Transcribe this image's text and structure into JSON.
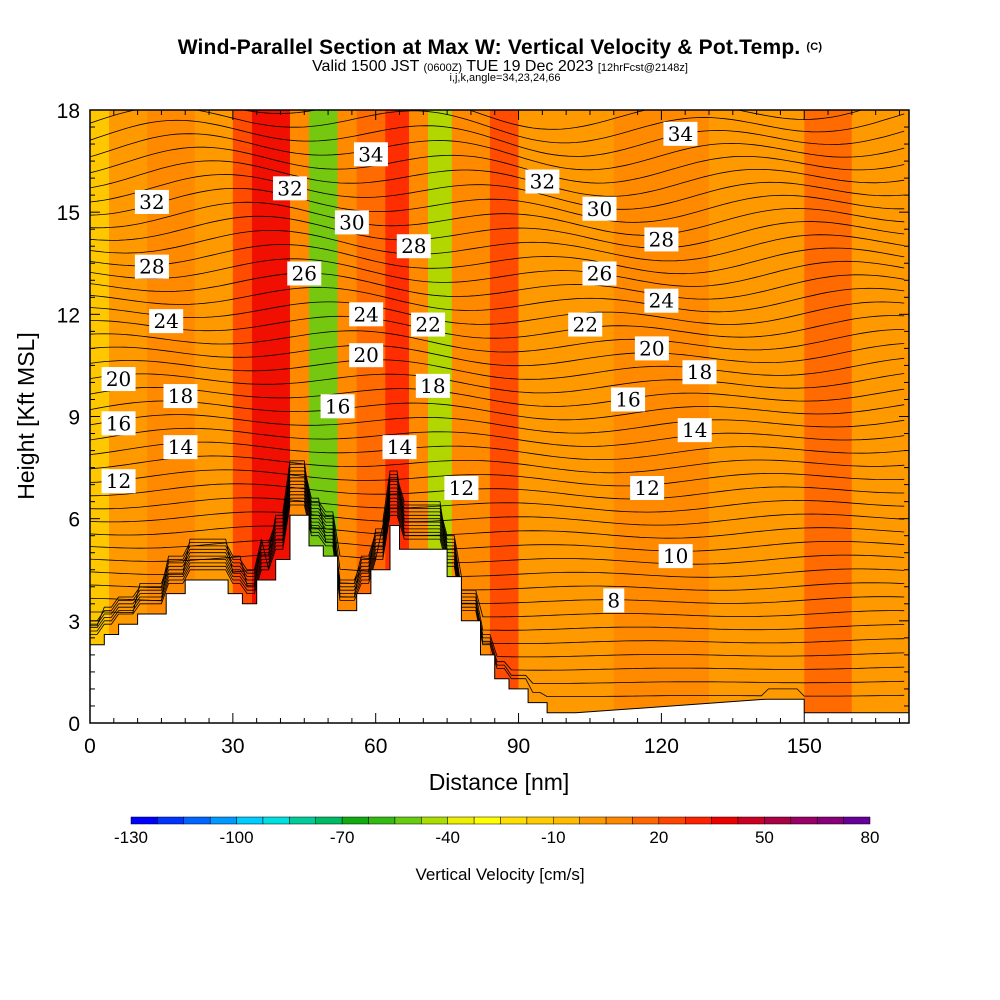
{
  "header": {
    "title": "Wind-Parallel Section at Max W: Vertical Velocity & Pot.Temp.",
    "copyright": "(C)",
    "valid_prefix": "Valid 1500 JST",
    "valid_utc": "(0600Z)",
    "valid_date": "TUE 19 Dec 2023",
    "forecast_info": "[12hrFcst@2148z]",
    "params": "i,j,k,angle=34,23,24,66"
  },
  "chart_data": {
    "type": "heatmap",
    "xlabel": "Distance [nm]",
    "ylabel": "Height [Kft MSL]",
    "xlim": [
      0,
      172
    ],
    "ylim": [
      0,
      18
    ],
    "x_ticks": [
      0,
      30,
      60,
      90,
      120,
      150
    ],
    "y_ticks": [
      0,
      3,
      6,
      9,
      12,
      15,
      18
    ],
    "terrain": {
      "x": [
        0,
        3,
        3,
        6,
        6,
        10,
        10,
        16,
        16,
        20,
        20,
        29,
        29,
        32,
        32,
        35,
        35,
        39,
        39,
        42,
        42,
        46,
        46,
        49,
        49,
        52,
        52,
        56,
        56,
        59,
        59,
        63,
        63,
        65,
        65,
        75,
        75,
        78,
        78,
        82,
        82,
        85,
        85,
        88,
        88,
        92,
        92,
        96,
        96,
        99,
        99,
        102,
        102,
        142,
        142,
        150,
        150,
        155,
        155,
        172
      ],
      "y": [
        2.3,
        2.3,
        2.6,
        2.6,
        2.9,
        2.9,
        3.2,
        3.2,
        3.8,
        3.8,
        4.2,
        4.2,
        3.8,
        3.8,
        3.5,
        3.5,
        4.2,
        4.2,
        4.8,
        4.8,
        6.1,
        6.1,
        5.2,
        5.2,
        4.9,
        4.9,
        3.3,
        3.3,
        3.8,
        3.8,
        4.5,
        4.5,
        5.8,
        5.8,
        5.1,
        5.1,
        4.3,
        4.3,
        3.0,
        3.0,
        2.0,
        2.0,
        1.3,
        1.3,
        1.0,
        1.0,
        0.6,
        0.6,
        0.3,
        0.3,
        0.3,
        0.3,
        0.3,
        0.7,
        0.7,
        0.7,
        0.3,
        0.3,
        0.3,
        0.3
      ]
    },
    "velocity_bands": [
      {
        "x_start": 0,
        "x_end": 4,
        "w": -15
      },
      {
        "x_start": 4,
        "x_end": 12,
        "w": 0
      },
      {
        "x_start": 12,
        "x_end": 22,
        "w": 10
      },
      {
        "x_start": 22,
        "x_end": 30,
        "w": 0
      },
      {
        "x_start": 30,
        "x_end": 34,
        "w": 20
      },
      {
        "x_start": 34,
        "x_end": 42,
        "w": 40
      },
      {
        "x_start": 42,
        "x_end": 46,
        "w": 10
      },
      {
        "x_start": 46,
        "x_end": 52,
        "w": -55
      },
      {
        "x_start": 52,
        "x_end": 56,
        "w": 5
      },
      {
        "x_start": 56,
        "x_end": 62,
        "w": 15
      },
      {
        "x_start": 62,
        "x_end": 67,
        "w": 30
      },
      {
        "x_start": 67,
        "x_end": 71,
        "w": 5
      },
      {
        "x_start": 71,
        "x_end": 76,
        "w": -45
      },
      {
        "x_start": 76,
        "x_end": 84,
        "w": 5
      },
      {
        "x_start": 84,
        "x_end": 90,
        "w": 20
      },
      {
        "x_start": 90,
        "x_end": 110,
        "w": 0
      },
      {
        "x_start": 110,
        "x_end": 130,
        "w": 10
      },
      {
        "x_start": 130,
        "x_end": 150,
        "w": 0
      },
      {
        "x_start": 150,
        "x_end": 160,
        "w": 15
      },
      {
        "x_start": 160,
        "x_end": 172,
        "w": 0
      }
    ],
    "theta_labels": [
      {
        "value": "34",
        "x": 59,
        "y": 16.7
      },
      {
        "value": "34",
        "x": 124,
        "y": 17.3
      },
      {
        "value": "32",
        "x": 13,
        "y": 15.3
      },
      {
        "value": "32",
        "x": 42,
        "y": 15.7
      },
      {
        "value": "32",
        "x": 95,
        "y": 15.9
      },
      {
        "value": "30",
        "x": 55,
        "y": 14.7
      },
      {
        "value": "30",
        "x": 107,
        "y": 15.1
      },
      {
        "value": "28",
        "x": 13,
        "y": 13.4
      },
      {
        "value": "28",
        "x": 68,
        "y": 14.0
      },
      {
        "value": "28",
        "x": 120,
        "y": 14.2
      },
      {
        "value": "26",
        "x": 45,
        "y": 13.2
      },
      {
        "value": "26",
        "x": 107,
        "y": 13.2
      },
      {
        "value": "24",
        "x": 16,
        "y": 11.8
      },
      {
        "value": "24",
        "x": 58,
        "y": 12.0
      },
      {
        "value": "24",
        "x": 120,
        "y": 12.4
      },
      {
        "value": "22",
        "x": 71,
        "y": 11.7
      },
      {
        "value": "22",
        "x": 104,
        "y": 11.7
      },
      {
        "value": "20",
        "x": 6,
        "y": 10.1
      },
      {
        "value": "20",
        "x": 58,
        "y": 10.8
      },
      {
        "value": "20",
        "x": 118,
        "y": 11.0
      },
      {
        "value": "18",
        "x": 19,
        "y": 9.6
      },
      {
        "value": "18",
        "x": 72,
        "y": 9.9
      },
      {
        "value": "18",
        "x": 128,
        "y": 10.3
      },
      {
        "value": "16",
        "x": 6,
        "y": 8.8
      },
      {
        "value": "16",
        "x": 52,
        "y": 9.3
      },
      {
        "value": "16",
        "x": 113,
        "y": 9.5
      },
      {
        "value": "14",
        "x": 19,
        "y": 8.1
      },
      {
        "value": "14",
        "x": 65,
        "y": 8.1
      },
      {
        "value": "14",
        "x": 127,
        "y": 8.6
      },
      {
        "value": "12",
        "x": 6,
        "y": 7.1
      },
      {
        "value": "12",
        "x": 78,
        "y": 6.9
      },
      {
        "value": "12",
        "x": 117,
        "y": 6.9
      },
      {
        "value": "10",
        "x": 123,
        "y": 4.9
      },
      {
        "value": "8",
        "x": 110,
        "y": 3.6
      }
    ],
    "colorbar": {
      "title": "Vertical Velocity [cm/s]",
      "min": -130,
      "max": 80,
      "tick_labels": [
        "-130",
        "-100",
        "-70",
        "-40",
        "-10",
        "20",
        "50",
        "80"
      ],
      "colors": [
        "#0000ff",
        "#0033ff",
        "#0066ff",
        "#0099ff",
        "#00ccff",
        "#00e0e0",
        "#00cc99",
        "#00bb66",
        "#11aa11",
        "#33bb11",
        "#66cc11",
        "#aadd00",
        "#eeee00",
        "#ffff00",
        "#ffdd00",
        "#ffcc00",
        "#ffbb00",
        "#ff9900",
        "#ff8800",
        "#ff6600",
        "#ff4400",
        "#ff2200",
        "#ee0000",
        "#cc0022",
        "#aa0044",
        "#990066",
        "#880077",
        "#660099"
      ]
    }
  }
}
